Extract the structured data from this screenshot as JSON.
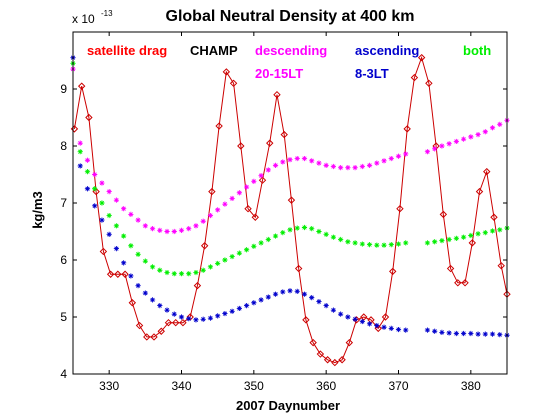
{
  "chart_data": {
    "type": "line",
    "title": "Global Neutral Density at 400 km",
    "xlabel": "2007 Daynumber",
    "ylabel": "kg/m3",
    "y_exponent_label": "x 10",
    "y_exponent_power": "-13",
    "xlim": [
      325,
      385
    ],
    "ylim": [
      4,
      10
    ],
    "xticks": [
      "330",
      "340",
      "350",
      "360",
      "370",
      "380"
    ],
    "yticks": [
      "4",
      "5",
      "6",
      "7",
      "8",
      "9"
    ],
    "grid": false,
    "legend_text": [
      {
        "id": "drag",
        "text": "satellite drag",
        "color": "#ff0000"
      },
      {
        "id": "champ",
        "text": "CHAMP",
        "color": "#000000"
      },
      {
        "id": "desc",
        "text": "descending",
        "color": "#ff00ff"
      },
      {
        "id": "desc_lt",
        "text": "20-15LT",
        "color": "#ff00ff"
      },
      {
        "id": "asc",
        "text": "ascending",
        "color": "#0000cc"
      },
      {
        "id": "asc_lt",
        "text": "8-3LT",
        "color": "#0000cc"
      },
      {
        "id": "both",
        "text": "both",
        "color": "#00ee00"
      }
    ],
    "series": [
      {
        "name": "satellite drag",
        "color": "#cc0000",
        "marker": "diamond",
        "line": true,
        "x": [
          325.2,
          326.2,
          327.2,
          328.2,
          329.2,
          330.2,
          331.2,
          332.2,
          333.2,
          334.2,
          335.2,
          336.2,
          337.2,
          338.2,
          339.2,
          340.2,
          341.2,
          342.2,
          343.2,
          344.2,
          345.2,
          346.2,
          347.2,
          348.2,
          349.2,
          350.2,
          351.2,
          352.2,
          353.2,
          354.2,
          355.2,
          356.2,
          357.2,
          358.2,
          359.2,
          360.2,
          361.2,
          362.2,
          363.2,
          364.2,
          365.2,
          366.2,
          367.2,
          368.2,
          369.2,
          370.2,
          371.2,
          372.2,
          373.2,
          374.2,
          375.2,
          376.2,
          377.2,
          378.2,
          379.2,
          380.2,
          381.2,
          382.2,
          383.2,
          384.2,
          385.0
        ],
        "values": [
          8.3,
          9.05,
          8.5,
          7.2,
          6.15,
          5.75,
          5.75,
          5.75,
          5.25,
          4.85,
          4.65,
          4.65,
          4.75,
          4.9,
          4.9,
          4.9,
          5.0,
          5.55,
          6.25,
          7.2,
          8.35,
          9.3,
          9.1,
          8.0,
          6.9,
          6.75,
          7.4,
          8.05,
          8.9,
          8.2,
          7.05,
          5.85,
          4.95,
          4.55,
          4.35,
          4.25,
          4.2,
          4.25,
          4.55,
          4.95,
          5.0,
          4.95,
          4.8,
          5.0,
          5.8,
          6.9,
          8.3,
          9.2,
          9.55,
          9.1,
          8.0,
          6.8,
          5.85,
          5.6,
          5.6,
          6.3,
          7.2,
          7.55,
          6.75,
          5.9,
          5.4
        ]
      },
      {
        "name": "descending",
        "color": "#ff00ff",
        "marker": "star",
        "line": false,
        "x": [
          325,
          326,
          327,
          328,
          329,
          330,
          331,
          332,
          333,
          334,
          335,
          336,
          337,
          338,
          339,
          340,
          341,
          342,
          343,
          344,
          345,
          346,
          347,
          348,
          349,
          350,
          351,
          352,
          353,
          354,
          355,
          356,
          357,
          358,
          359,
          360,
          361,
          362,
          363,
          364,
          365,
          366,
          367,
          368,
          369,
          370,
          371,
          374,
          375,
          376,
          377,
          378,
          379,
          380,
          381,
          382,
          383,
          384,
          385
        ],
        "values": [
          9.35,
          8.05,
          7.75,
          7.5,
          7.35,
          7.2,
          7.05,
          6.9,
          6.8,
          6.7,
          6.6,
          6.55,
          6.52,
          6.5,
          6.5,
          6.52,
          6.55,
          6.6,
          6.68,
          6.78,
          6.88,
          6.98,
          7.08,
          7.18,
          7.28,
          7.38,
          7.48,
          7.58,
          7.66,
          7.72,
          7.76,
          7.78,
          7.78,
          7.74,
          7.7,
          7.66,
          7.64,
          7.62,
          7.62,
          7.62,
          7.64,
          7.66,
          7.7,
          7.74,
          7.78,
          7.82,
          7.86,
          7.9,
          7.95,
          8.0,
          8.04,
          8.08,
          8.12,
          8.16,
          8.2,
          8.25,
          8.32,
          8.38,
          8.45
        ]
      },
      {
        "name": "both",
        "color": "#00ee00",
        "marker": "star",
        "line": false,
        "x": [
          325,
          326,
          327,
          328,
          329,
          330,
          331,
          332,
          333,
          334,
          335,
          336,
          337,
          338,
          339,
          340,
          341,
          342,
          343,
          344,
          345,
          346,
          347,
          348,
          349,
          350,
          351,
          352,
          353,
          354,
          355,
          356,
          357,
          358,
          359,
          360,
          361,
          362,
          363,
          364,
          365,
          366,
          367,
          368,
          369,
          370,
          371,
          374,
          375,
          376,
          377,
          378,
          379,
          380,
          381,
          382,
          383,
          384,
          385
        ],
        "values": [
          9.45,
          7.9,
          7.55,
          7.25,
          7.0,
          6.78,
          6.6,
          6.42,
          6.25,
          6.1,
          5.98,
          5.88,
          5.82,
          5.78,
          5.76,
          5.76,
          5.76,
          5.78,
          5.82,
          5.88,
          5.94,
          6.0,
          6.06,
          6.12,
          6.18,
          6.24,
          6.3,
          6.36,
          6.42,
          6.48,
          6.53,
          6.56,
          6.57,
          6.55,
          6.5,
          6.45,
          6.4,
          6.36,
          6.32,
          6.3,
          6.28,
          6.27,
          6.26,
          6.26,
          6.27,
          6.28,
          6.3,
          6.3,
          6.32,
          6.34,
          6.36,
          6.38,
          6.4,
          6.43,
          6.46,
          6.48,
          6.51,
          6.53,
          6.56
        ]
      },
      {
        "name": "ascending",
        "color": "#0000cc",
        "marker": "star",
        "line": false,
        "x": [
          325,
          326,
          327,
          328,
          329,
          330,
          331,
          332,
          333,
          334,
          335,
          336,
          337,
          338,
          339,
          340,
          341,
          342,
          343,
          344,
          345,
          346,
          347,
          348,
          349,
          350,
          351,
          352,
          353,
          354,
          355,
          356,
          357,
          358,
          359,
          360,
          361,
          362,
          363,
          364,
          365,
          366,
          367,
          368,
          369,
          370,
          371,
          374,
          375,
          376,
          377,
          378,
          379,
          380,
          381,
          382,
          383,
          384,
          385
        ],
        "values": [
          9.55,
          7.65,
          7.25,
          6.95,
          6.7,
          6.45,
          6.2,
          5.95,
          5.72,
          5.55,
          5.42,
          5.3,
          5.2,
          5.12,
          5.05,
          5.0,
          4.97,
          4.95,
          4.96,
          4.98,
          5.02,
          5.06,
          5.1,
          5.15,
          5.2,
          5.25,
          5.3,
          5.35,
          5.4,
          5.44,
          5.46,
          5.45,
          5.4,
          5.34,
          5.27,
          5.2,
          5.12,
          5.05,
          5.0,
          4.96,
          4.92,
          4.88,
          4.85,
          4.82,
          4.8,
          4.78,
          4.77,
          4.77,
          4.75,
          4.73,
          4.72,
          4.71,
          4.71,
          4.71,
          4.7,
          4.7,
          4.7,
          4.69,
          4.68
        ]
      }
    ]
  }
}
